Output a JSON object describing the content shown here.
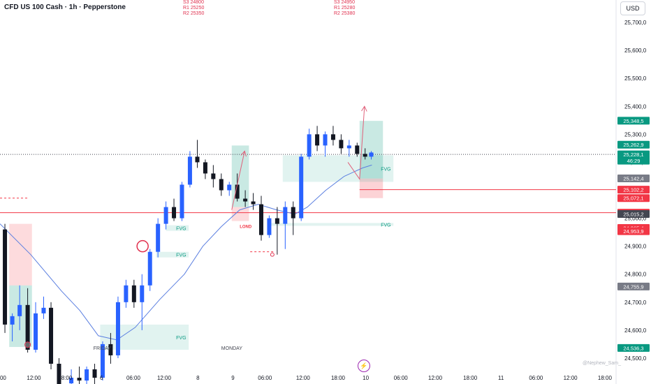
{
  "header": {
    "title": "CFD US 100 Cash · 1h · Pepperstone",
    "currency": "USD"
  },
  "pivots_left": {
    "s3": "S3 24800",
    "r1": "R1 25250",
    "r2": "R2 25350"
  },
  "pivots_right": {
    "s3": "S3 24950",
    "r1": "R1 25280",
    "r2": "R2 25380"
  },
  "attribution": "@Nephew_Sam_",
  "chart_data": {
    "type": "candlestick",
    "instrument": "CFD US 100 Cash",
    "timeframe": "1h",
    "broker": "Pepperstone",
    "ylim": [
      24455,
      25780
    ],
    "yticks": [
      24500,
      24600,
      24700,
      24800,
      24900,
      25000,
      25100,
      25200,
      25300,
      25400,
      25500,
      25600,
      25700
    ],
    "ytick_labels": [
      "24,500,0",
      "24,600,0",
      "24,700,0",
      "24,800,0",
      "24,900,0",
      "25,000,0",
      "25,100,0",
      "25,200,0",
      "25,300,0",
      "25,400,0",
      "25,500,0",
      "25,600,0",
      "25,700,0"
    ],
    "xticks": [
      {
        "label": "00",
        "pos": 0.005
      },
      {
        "label": "12:00",
        "pos": 0.055
      },
      {
        "label": "18:00",
        "pos": 0.106
      },
      {
        "label": "6",
        "pos": 0.165
      },
      {
        "label": "06:00",
        "pos": 0.217
      },
      {
        "label": "12:00",
        "pos": 0.267
      },
      {
        "label": "8",
        "pos": 0.322
      },
      {
        "label": "9",
        "pos": 0.379
      },
      {
        "label": "06:00",
        "pos": 0.431
      },
      {
        "label": "12:00",
        "pos": 0.493
      },
      {
        "label": "18:00",
        "pos": 0.55
      },
      {
        "label": "10",
        "pos": 0.595
      },
      {
        "label": "06:00",
        "pos": 0.652
      },
      {
        "label": "12:00",
        "pos": 0.708
      },
      {
        "label": "18:00",
        "pos": 0.765
      },
      {
        "label": "11",
        "pos": 0.815
      },
      {
        "label": "06:00",
        "pos": 0.872
      },
      {
        "label": "12:00",
        "pos": 0.928
      },
      {
        "label": "18:00",
        "pos": 0.984
      }
    ],
    "price_labels": [
      {
        "text": "25,348,5",
        "value": 25348.5,
        "color": "#089981"
      },
      {
        "text": "25,262,9",
        "value": 25262.9,
        "color": "#089981"
      },
      {
        "text": "25,228,1",
        "sub": "46:29",
        "value": 25228.1,
        "color": "#089981"
      },
      {
        "text": "25,142,4",
        "value": 25142.4,
        "color": "#787b86"
      },
      {
        "text": "25,102,2",
        "value": 25102.2,
        "color": "#f23645"
      },
      {
        "text": "25,072,1",
        "value": 25072.1,
        "color": "#f23645"
      },
      {
        "text": "25,019,9",
        "value": 25019.9,
        "color": "#f23645"
      },
      {
        "text": "25,015,2",
        "value": 25015.2,
        "color": "#434651"
      },
      {
        "text": "24,965,4",
        "value": 24965.4,
        "color": "#f23645"
      },
      {
        "text": "24,953,9",
        "value": 24953.9,
        "color": "#f23645"
      },
      {
        "text": "24,755,9",
        "value": 24755.9,
        "color": "#787b86"
      },
      {
        "text": "24,536,3",
        "value": 24536.3,
        "color": "#089981"
      }
    ],
    "candles": [
      {
        "x": 0.008,
        "o": 24960,
        "h": 24980,
        "l": 24590,
        "c": 24620
      },
      {
        "x": 0.02,
        "o": 24620,
        "h": 24660,
        "l": 24560,
        "c": 24650
      },
      {
        "x": 0.032,
        "o": 24650,
        "h": 24760,
        "l": 24600,
        "c": 24690
      },
      {
        "x": 0.045,
        "o": 24690,
        "h": 24750,
        "l": 24520,
        "c": 24530
      },
      {
        "x": 0.058,
        "o": 24530,
        "h": 24700,
        "l": 24520,
        "c": 24660
      },
      {
        "x": 0.071,
        "o": 24660,
        "h": 24720,
        "l": 24640,
        "c": 24680
      },
      {
        "x": 0.083,
        "o": 24680,
        "h": 24700,
        "l": 24460,
        "c": 24480
      },
      {
        "x": 0.096,
        "o": 24480,
        "h": 24500,
        "l": 24380,
        "c": 24400
      },
      {
        "x": 0.116,
        "o": 24410,
        "h": 24460,
        "l": 24390,
        "c": 24430
      },
      {
        "x": 0.129,
        "o": 24430,
        "h": 24470,
        "l": 24400,
        "c": 24420
      },
      {
        "x": 0.141,
        "o": 24420,
        "h": 24470,
        "l": 24400,
        "c": 24460
      },
      {
        "x": 0.154,
        "o": 24460,
        "h": 24480,
        "l": 24400,
        "c": 24430
      },
      {
        "x": 0.167,
        "o": 24430,
        "h": 24560,
        "l": 24420,
        "c": 24550
      },
      {
        "x": 0.18,
        "o": 24550,
        "h": 24590,
        "l": 24480,
        "c": 24510
      },
      {
        "x": 0.192,
        "o": 24510,
        "h": 24720,
        "l": 24500,
        "c": 24700
      },
      {
        "x": 0.205,
        "o": 24700,
        "h": 24780,
        "l": 24680,
        "c": 24760
      },
      {
        "x": 0.218,
        "o": 24760,
        "h": 24780,
        "l": 24680,
        "c": 24700
      },
      {
        "x": 0.231,
        "o": 24700,
        "h": 24800,
        "l": 24600,
        "c": 24760
      },
      {
        "x": 0.244,
        "o": 24760,
        "h": 24890,
        "l": 24740,
        "c": 24880
      },
      {
        "x": 0.257,
        "o": 24880,
        "h": 25000,
        "l": 24860,
        "c": 24980
      },
      {
        "x": 0.27,
        "o": 24980,
        "h": 25060,
        "l": 24960,
        "c": 25040
      },
      {
        "x": 0.283,
        "o": 25040,
        "h": 25070,
        "l": 24990,
        "c": 25000
      },
      {
        "x": 0.296,
        "o": 25000,
        "h": 25130,
        "l": 24990,
        "c": 25120
      },
      {
        "x": 0.309,
        "o": 25120,
        "h": 25240,
        "l": 25110,
        "c": 25220
      },
      {
        "x": 0.321,
        "o": 25220,
        "h": 25280,
        "l": 25180,
        "c": 25200
      },
      {
        "x": 0.334,
        "o": 25200,
        "h": 25210,
        "l": 25140,
        "c": 25160
      },
      {
        "x": 0.347,
        "o": 25160,
        "h": 25190,
        "l": 25110,
        "c": 25140
      },
      {
        "x": 0.36,
        "o": 25140,
        "h": 25160,
        "l": 25080,
        "c": 25100
      },
      {
        "x": 0.373,
        "o": 25100,
        "h": 25130,
        "l": 25080,
        "c": 25120
      },
      {
        "x": 0.386,
        "o": 25120,
        "h": 25160,
        "l": 25060,
        "c": 25070
      },
      {
        "x": 0.399,
        "o": 25070,
        "h": 25100,
        "l": 25040,
        "c": 25060
      },
      {
        "x": 0.412,
        "o": 25060,
        "h": 25090,
        "l": 25030,
        "c": 25050
      },
      {
        "x": 0.425,
        "o": 25050,
        "h": 25080,
        "l": 24920,
        "c": 24940
      },
      {
        "x": 0.438,
        "o": 24940,
        "h": 25010,
        "l": 24930,
        "c": 25000
      },
      {
        "x": 0.451,
        "o": 25000,
        "h": 25040,
        "l": 24870,
        "c": 24980
      },
      {
        "x": 0.464,
        "o": 24980,
        "h": 25060,
        "l": 24890,
        "c": 25040
      },
      {
        "x": 0.477,
        "o": 25040,
        "h": 25060,
        "l": 24940,
        "c": 25000
      },
      {
        "x": 0.49,
        "o": 25000,
        "h": 25230,
        "l": 24990,
        "c": 25220
      },
      {
        "x": 0.503,
        "o": 25220,
        "h": 25320,
        "l": 25210,
        "c": 25300
      },
      {
        "x": 0.516,
        "o": 25300,
        "h": 25330,
        "l": 25240,
        "c": 25260
      },
      {
        "x": 0.529,
        "o": 25260,
        "h": 25310,
        "l": 25220,
        "c": 25300
      },
      {
        "x": 0.542,
        "o": 25300,
        "h": 25330,
        "l": 25260,
        "c": 25280
      },
      {
        "x": 0.555,
        "o": 25280,
        "h": 25300,
        "l": 25230,
        "c": 25250
      },
      {
        "x": 0.568,
        "o": 25250,
        "h": 25280,
        "l": 25220,
        "c": 25260
      },
      {
        "x": 0.581,
        "o": 25260,
        "h": 25270,
        "l": 25220,
        "c": 25230
      },
      {
        "x": 0.594,
        "o": 25230,
        "h": 25250,
        "l": 25210,
        "c": 25220
      },
      {
        "x": 0.604,
        "o": 25220,
        "h": 25240,
        "l": 25210,
        "c": 25235
      }
    ],
    "ema": [
      {
        "x": 0.0,
        "y": 24980
      },
      {
        "x": 0.05,
        "y": 24870
      },
      {
        "x": 0.1,
        "y": 24740
      },
      {
        "x": 0.13,
        "y": 24670
      },
      {
        "x": 0.16,
        "y": 24580
      },
      {
        "x": 0.19,
        "y": 24565
      },
      {
        "x": 0.22,
        "y": 24610
      },
      {
        "x": 0.26,
        "y": 24710
      },
      {
        "x": 0.3,
        "y": 24800
      },
      {
        "x": 0.33,
        "y": 24900
      },
      {
        "x": 0.36,
        "y": 24970
      },
      {
        "x": 0.39,
        "y": 25030
      },
      {
        "x": 0.42,
        "y": 25050
      },
      {
        "x": 0.45,
        "y": 25030
      },
      {
        "x": 0.48,
        "y": 25015
      },
      {
        "x": 0.5,
        "y": 25040
      },
      {
        "x": 0.53,
        "y": 25100
      },
      {
        "x": 0.56,
        "y": 25150
      },
      {
        "x": 0.59,
        "y": 25180
      },
      {
        "x": 0.605,
        "y": 25190
      }
    ],
    "fvg_zones": [
      {
        "label": "FVG",
        "x0": 0.27,
        "x1": 0.307,
        "y0": 24955,
        "y1": 24975
      },
      {
        "label": "FVG",
        "x0": 0.254,
        "x1": 0.307,
        "y0": 24860,
        "y1": 24880
      },
      {
        "label": "FVG",
        "x0": 0.163,
        "x1": 0.307,
        "y0": 24530,
        "y1": 24620
      },
      {
        "label": "FVG",
        "x0": 0.163,
        "x1": 0.307,
        "y0": 24380,
        "y1": 24395
      },
      {
        "label": "FVG",
        "x0": 0.436,
        "x1": 0.64,
        "y0": 24975,
        "y1": 24983
      },
      {
        "label": "FVG",
        "x0": 0.46,
        "x1": 0.64,
        "y0": 25130,
        "y1": 25225
      }
    ],
    "boxes": [
      {
        "x0": 0.015,
        "x1": 0.052,
        "y0": 24760,
        "y1": 24540,
        "color": "#089981",
        "alpha": 0.22
      },
      {
        "x0": 0.015,
        "x1": 0.052,
        "y0": 24980,
        "y1": 24760,
        "color": "#f23645",
        "alpha": 0.18
      },
      {
        "x0": 0.377,
        "x1": 0.405,
        "y0": 25260,
        "y1": 25040,
        "color": "#089981",
        "alpha": 0.22
      },
      {
        "x0": 0.377,
        "x1": 0.405,
        "y0": 25040,
        "y1": 24990,
        "color": "#f23645",
        "alpha": 0.18
      },
      {
        "x0": 0.585,
        "x1": 0.623,
        "y0": 25348,
        "y1": 25142,
        "color": "#089981",
        "alpha": 0.22
      },
      {
        "x0": 0.585,
        "x1": 0.623,
        "y0": 25142,
        "y1": 25072,
        "color": "#f23645",
        "alpha": 0.22
      }
    ],
    "hlines": [
      {
        "y": 25228.1,
        "x0": 0,
        "x1": 1,
        "color": "#434651",
        "dash": "1,2"
      },
      {
        "y": 25102.2,
        "x0": 0.585,
        "x1": 1,
        "color": "#f23645"
      },
      {
        "y": 25019.9,
        "x0": 0,
        "x1": 1,
        "color": "#f23645"
      },
      {
        "y": 25072,
        "x0": 0,
        "x1": 0.045,
        "color": "#f23645",
        "dash": "3,3"
      },
      {
        "y": 24880,
        "x0": 0.407,
        "x1": 0.445,
        "color": "#f23645",
        "dash": "3,3"
      }
    ],
    "arrows": [
      {
        "pts": [
          [
            0.377,
            25030
          ],
          [
            0.398,
            25240
          ]
        ],
        "head": true
      },
      {
        "pts": [
          [
            0.566,
            25200
          ],
          [
            0.585,
            25140
          ],
          [
            0.593,
            25400
          ]
        ],
        "head": true
      }
    ],
    "markers": [
      {
        "type": "circle",
        "x": 0.232,
        "y": 24900
      },
      {
        "type": "small_circle",
        "x": 0.045,
        "y": 24548
      },
      {
        "type": "dot",
        "x": 0.443,
        "y": 24870
      }
    ],
    "annotations": [
      {
        "text": "FRIDAY",
        "x": 0.152,
        "y": 24530
      },
      {
        "text": "MONDAY",
        "x": 0.36,
        "y": 24530
      },
      {
        "text": "LOND",
        "x": 0.39,
        "y": 24965,
        "color": "#f23645"
      }
    ]
  }
}
